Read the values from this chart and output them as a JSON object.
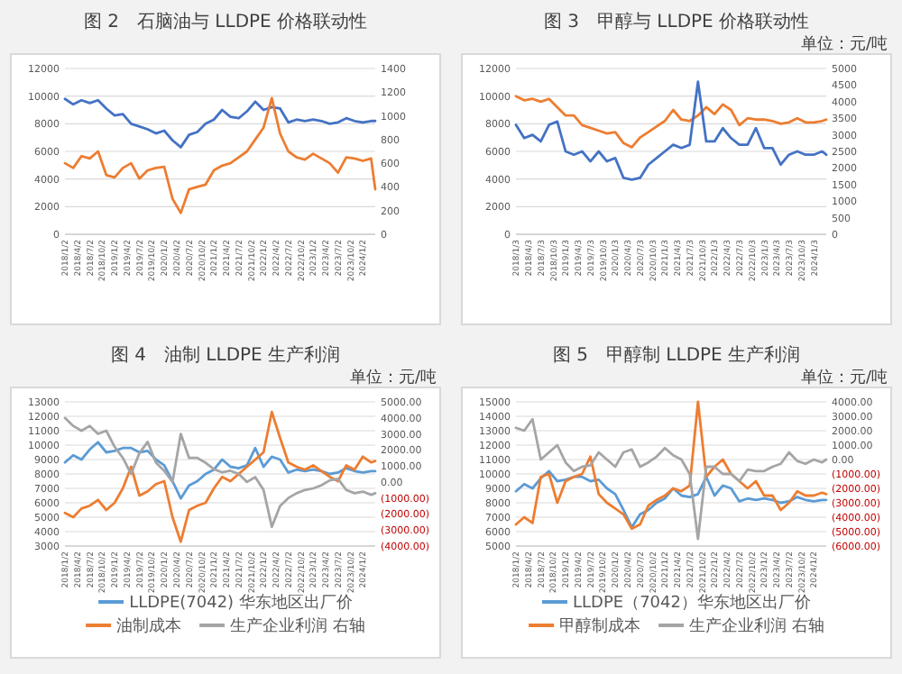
{
  "chart_data": [
    {
      "type": "line",
      "title": "图 2　石脑油与 LLDPE 价格联动性",
      "grid": "y",
      "xlim": [
        "2018-01",
        "2024-04"
      ],
      "x": [
        "2018-01",
        "2018-03",
        "2018-05",
        "2018-07",
        "2018-09",
        "2018-11",
        "2019-01",
        "2019-03",
        "2019-05",
        "2019-07",
        "2019-09",
        "2019-11",
        "2020-01",
        "2020-03",
        "2020-05",
        "2020-07",
        "2020-09",
        "2020-11",
        "2021-01",
        "2021-03",
        "2021-05",
        "2021-07",
        "2021-09",
        "2021-11",
        "2022-01",
        "2022-03",
        "2022-05",
        "2022-07",
        "2022-09",
        "2022-11",
        "2023-01",
        "2023-03",
        "2023-05",
        "2023-07",
        "2023-09",
        "2023-11",
        "2024-01",
        "2024-03",
        "2024-04"
      ],
      "xticks": [
        {
          "value": "2018-01-02",
          "label": "2018/1/2"
        },
        {
          "value": "2018-04-02",
          "label": "2018/4/2"
        },
        {
          "value": "2018-07-02",
          "label": "2018/7/2"
        },
        {
          "value": "2018-10-02",
          "label": "2018/10/2"
        },
        {
          "value": "2019-01-02",
          "label": "2019/1/2"
        },
        {
          "value": "2019-04-02",
          "label": "2019/4/2"
        },
        {
          "value": "2019-07-02",
          "label": "2019/7/2"
        },
        {
          "value": "2019-10-02",
          "label": "2019/10/2"
        },
        {
          "value": "2020-01-02",
          "label": "2020/1/2"
        },
        {
          "value": "2020-04-02",
          "label": "2020/4/2"
        },
        {
          "value": "2020-07-02",
          "label": "2020/7/2"
        },
        {
          "value": "2020-10-02",
          "label": "2020/10/2"
        },
        {
          "value": "2021-01-02",
          "label": "2021/1/2"
        },
        {
          "value": "2021-04-02",
          "label": "2021/4/2"
        },
        {
          "value": "2021-07-02",
          "label": "2021/7/2"
        },
        {
          "value": "2021-10-02",
          "label": "2021/10/2"
        },
        {
          "value": "2022-01-02",
          "label": "2022/1/2"
        },
        {
          "value": "2022-04-02",
          "label": "2022/4/2"
        },
        {
          "value": "2022-07-02",
          "label": "2022/7/2"
        },
        {
          "value": "2022-10-02",
          "label": "2022/10/2"
        },
        {
          "value": "2023-01-02",
          "label": "2023/1/2"
        },
        {
          "value": "2023-04-02",
          "label": "2023/4/2"
        },
        {
          "value": "2023-07-02",
          "label": "2023/7/2"
        },
        {
          "value": "2023-10-02",
          "label": "2023/10/2"
        },
        {
          "value": "2024-01-02",
          "label": "2024/1/2"
        }
      ],
      "ylim": [
        0,
        12000
      ],
      "yticks": [
        0,
        2000,
        4000,
        6000,
        8000,
        10000,
        12000
      ],
      "y2lim": [
        0,
        1400
      ],
      "y2ticks": [
        0,
        200,
        400,
        600,
        800,
        1000,
        1200,
        1400
      ],
      "series": [
        {
          "color": "#4472c4",
          "values": [
            9800,
            9400,
            9700,
            9500,
            9700,
            9100,
            8600,
            8700,
            8000,
            7800,
            7600,
            7300,
            7500,
            6800,
            6300,
            7200,
            7400,
            8000,
            8300,
            9000,
            8500,
            8400,
            8900,
            9600,
            9000,
            9200,
            9100,
            8100,
            8300,
            8200,
            8300,
            8200,
            8000,
            8100,
            8400,
            8200,
            8100,
            8200,
            8200
          ]
        },
        {
          "color": "#ed7d31",
          "axis": "y2",
          "values": [
            600,
            560,
            660,
            640,
            700,
            500,
            480,
            560,
            600,
            470,
            540,
            560,
            570,
            300,
            180,
            380,
            400,
            420,
            540,
            580,
            600,
            650,
            700,
            800,
            900,
            1150,
            850,
            700,
            650,
            630,
            680,
            640,
            600,
            520,
            650,
            640,
            620,
            640,
            380
          ]
        }
      ]
    },
    {
      "type": "line",
      "title": "图 3　甲醇与 LLDPE 价格联动性",
      "subtitle": "单位：元/吨",
      "grid": "y",
      "xlim": [
        "2018-01",
        "2024-04"
      ],
      "x": [
        "2018-01",
        "2018-03",
        "2018-05",
        "2018-07",
        "2018-09",
        "2018-11",
        "2019-01",
        "2019-03",
        "2019-05",
        "2019-07",
        "2019-09",
        "2019-11",
        "2020-01",
        "2020-03",
        "2020-05",
        "2020-07",
        "2020-09",
        "2020-11",
        "2021-01",
        "2021-03",
        "2021-05",
        "2021-07",
        "2021-09",
        "2021-11",
        "2022-01",
        "2022-03",
        "2022-05",
        "2022-07",
        "2022-09",
        "2022-11",
        "2023-01",
        "2023-03",
        "2023-05",
        "2023-07",
        "2023-09",
        "2023-11",
        "2024-01",
        "2024-03",
        "2024-04"
      ],
      "xticks": [
        {
          "value": "2018-01-03",
          "label": "2018/1/3"
        },
        {
          "value": "2018-04-03",
          "label": "2018/4/3"
        },
        {
          "value": "2018-07-03",
          "label": "2018/7/3"
        },
        {
          "value": "2018-10-03",
          "label": "2018/10/3"
        },
        {
          "value": "2019-01-03",
          "label": "2019/1/3"
        },
        {
          "value": "2019-04-03",
          "label": "2019/4/3"
        },
        {
          "value": "2019-07-03",
          "label": "2019/7/3"
        },
        {
          "value": "2019-10-03",
          "label": "2019/10/3"
        },
        {
          "value": "2020-01-03",
          "label": "2020/1/3"
        },
        {
          "value": "2020-04-03",
          "label": "2020/4/3"
        },
        {
          "value": "2020-07-03",
          "label": "2020/7/3"
        },
        {
          "value": "2020-10-03",
          "label": "2020/10/3"
        },
        {
          "value": "2021-01-03",
          "label": "2021/1/3"
        },
        {
          "value": "2021-04-03",
          "label": "2021/4/3"
        },
        {
          "value": "2021-07-03",
          "label": "2021/7/3"
        },
        {
          "value": "2021-10-03",
          "label": "2021/10/3"
        },
        {
          "value": "2022-01-03",
          "label": "2022/1/3"
        },
        {
          "value": "2022-04-03",
          "label": "2022/4/3"
        },
        {
          "value": "2022-07-03",
          "label": "2022/7/3"
        },
        {
          "value": "2022-10-03",
          "label": "2022/10/3"
        },
        {
          "value": "2023-01-03",
          "label": "2023/1/3"
        },
        {
          "value": "2023-04-03",
          "label": "2023/4/3"
        },
        {
          "value": "2023-07-03",
          "label": "2023/7/3"
        },
        {
          "value": "2023-10-03",
          "label": "2023/10/3"
        },
        {
          "value": "2024-01-03",
          "label": "2024/1/3"
        }
      ],
      "ylim": [
        0,
        12000
      ],
      "yticks": [
        0,
        2000,
        4000,
        6000,
        8000,
        10000,
        12000
      ],
      "y2lim": [
        0,
        5000
      ],
      "y2ticks": [
        0,
        500,
        1000,
        1500,
        2000,
        2500,
        3000,
        3500,
        4000,
        4500,
        5000
      ],
      "series": [
        {
          "color": "#ed7d31",
          "values": [
            10000,
            9700,
            9800,
            9600,
            9800,
            9200,
            8600,
            8600,
            7900,
            7700,
            7500,
            7300,
            7400,
            6600,
            6300,
            7000,
            7400,
            7800,
            8200,
            9000,
            8300,
            8200,
            8600,
            9200,
            8700,
            9400,
            9000,
            7900,
            8400,
            8300,
            8300,
            8200,
            8000,
            8100,
            8400,
            8100,
            8100,
            8200,
            8300
          ]
        },
        {
          "color": "#4472c4",
          "axis": "y2",
          "values": [
            3300,
            2900,
            3000,
            2800,
            3300,
            3400,
            2500,
            2400,
            2500,
            2200,
            2500,
            2200,
            2300,
            1700,
            1650,
            1700,
            2100,
            2300,
            2500,
            2700,
            2600,
            2700,
            4600,
            2800,
            2800,
            3200,
            2900,
            2700,
            2700,
            3200,
            2600,
            2600,
            2100,
            2400,
            2500,
            2400,
            2400,
            2500,
            2400
          ]
        }
      ]
    },
    {
      "type": "line",
      "title": "图 4　油制 LLDPE 生产利润",
      "subtitle": "单位：元/吨",
      "grid": "y",
      "legend": "bottom",
      "xlim": [
        "2018-01",
        "2024-04"
      ],
      "x": [
        "2018-01",
        "2018-03",
        "2018-05",
        "2018-07",
        "2018-09",
        "2018-11",
        "2019-01",
        "2019-03",
        "2019-05",
        "2019-07",
        "2019-09",
        "2019-11",
        "2020-01",
        "2020-03",
        "2020-05",
        "2020-07",
        "2020-09",
        "2020-11",
        "2021-01",
        "2021-03",
        "2021-05",
        "2021-07",
        "2021-09",
        "2021-11",
        "2022-01",
        "2022-03",
        "2022-05",
        "2022-07",
        "2022-09",
        "2022-11",
        "2023-01",
        "2023-03",
        "2023-05",
        "2023-07",
        "2023-09",
        "2023-11",
        "2024-01",
        "2024-03",
        "2024-04"
      ],
      "xticks": [
        {
          "value": "2018-01-02",
          "label": "2018/1/2"
        },
        {
          "value": "2018-04-02",
          "label": "2018/4/2"
        },
        {
          "value": "2018-07-02",
          "label": "2018/7/2"
        },
        {
          "value": "2018-10-02",
          "label": "2018/10/2"
        },
        {
          "value": "2019-01-02",
          "label": "2019/1/2"
        },
        {
          "value": "2019-04-02",
          "label": "2019/4/2"
        },
        {
          "value": "2019-07-02",
          "label": "2019/7/2"
        },
        {
          "value": "2019-10-02",
          "label": "2019/10/2"
        },
        {
          "value": "2020-01-02",
          "label": "2020/1/2"
        },
        {
          "value": "2020-04-02",
          "label": "2020/4/2"
        },
        {
          "value": "2020-07-02",
          "label": "2020/7/2"
        },
        {
          "value": "2020-10-02",
          "label": "2020/10/2"
        },
        {
          "value": "2021-01-02",
          "label": "2021/1/2"
        },
        {
          "value": "2021-04-02",
          "label": "2021/4/2"
        },
        {
          "value": "2021-07-02",
          "label": "2021/7/2"
        },
        {
          "value": "2021-10-02",
          "label": "2021/10/2"
        },
        {
          "value": "2022-01-02",
          "label": "2022/1/2"
        },
        {
          "value": "2022-04-02",
          "label": "2022/4/2"
        },
        {
          "value": "2022-07-02",
          "label": "2022/7/2"
        },
        {
          "value": "2022-10-02",
          "label": "2022/10/2"
        },
        {
          "value": "2023-01-02",
          "label": "2023/1/2"
        },
        {
          "value": "2023-04-02",
          "label": "2023/4/2"
        },
        {
          "value": "2023-07-02",
          "label": "2023/7/2"
        },
        {
          "value": "2023-10-02",
          "label": "2023/10/2"
        },
        {
          "value": "2024-01-02",
          "label": "2024/1/2"
        }
      ],
      "ylim": [
        3000,
        13000
      ],
      "yticks": [
        3000,
        4000,
        5000,
        6000,
        7000,
        8000,
        9000,
        10000,
        11000,
        12000,
        13000
      ],
      "y2lim": [
        -4000,
        5000
      ],
      "y2ticks": [
        {
          "value": -4000,
          "label": "(4000.00)"
        },
        {
          "value": -3000,
          "label": "(3000.00)"
        },
        {
          "value": -2000,
          "label": "(2000.00)"
        },
        {
          "value": -1000,
          "label": "(1000.00)"
        },
        {
          "value": 0,
          "label": "0.00"
        },
        {
          "value": 1000,
          "label": "1000.00"
        },
        {
          "value": 2000,
          "label": "2000.00"
        },
        {
          "value": 3000,
          "label": "3000.00"
        },
        {
          "value": 4000,
          "label": "4000.00"
        },
        {
          "value": 5000,
          "label": "5000.00"
        }
      ],
      "series": [
        {
          "name": "LLDPE(7042) 华东地区出厂价",
          "color": "#5b9bd5",
          "values": [
            8800,
            9300,
            9000,
            9700,
            10200,
            9500,
            9600,
            9800,
            9800,
            9500,
            9600,
            9000,
            8600,
            7500,
            6300,
            7200,
            7500,
            8000,
            8300,
            9000,
            8500,
            8400,
            8600,
            9800,
            8500,
            9200,
            9000,
            8100,
            8300,
            8200,
            8300,
            8200,
            8000,
            8100,
            8400,
            8200,
            8100,
            8200,
            8200
          ]
        },
        {
          "name": "油制成本",
          "color": "#ed7d31",
          "values": [
            5300,
            5000,
            5600,
            5800,
            6200,
            5500,
            6000,
            7000,
            8500,
            6500,
            6800,
            7300,
            7500,
            5000,
            3300,
            5500,
            5800,
            6000,
            7000,
            7800,
            7500,
            8000,
            8500,
            9000,
            9500,
            12300,
            10500,
            8800,
            8500,
            8300,
            8600,
            8200,
            7800,
            7500,
            8600,
            8300,
            9200,
            8800,
            8900
          ]
        },
        {
          "name": "生产企业利润 右轴",
          "color": "#a5a5a5",
          "axis": "y2",
          "values": [
            4000,
            3500,
            3200,
            3500,
            3000,
            3200,
            2200,
            1500,
            500,
            1800,
            2500,
            1200,
            700,
            0,
            3000,
            1500,
            1500,
            1200,
            800,
            600,
            700,
            500,
            0,
            300,
            -500,
            -2800,
            -1500,
            -1000,
            -700,
            -500,
            -400,
            -200,
            100,
            200,
            -500,
            -700,
            -600,
            -800,
            -700
          ]
        }
      ]
    },
    {
      "type": "line",
      "title": "图 5　甲醇制 LLDPE 生产利润",
      "subtitle": "单位：元/吨",
      "grid": "y",
      "legend": "bottom",
      "xlim": [
        "2018-01",
        "2024-04"
      ],
      "x": [
        "2018-01",
        "2018-03",
        "2018-05",
        "2018-07",
        "2018-09",
        "2018-11",
        "2019-01",
        "2019-03",
        "2019-05",
        "2019-07",
        "2019-09",
        "2019-11",
        "2020-01",
        "2020-03",
        "2020-05",
        "2020-07",
        "2020-09",
        "2020-11",
        "2021-01",
        "2021-03",
        "2021-05",
        "2021-07",
        "2021-09",
        "2021-11",
        "2022-01",
        "2022-03",
        "2022-05",
        "2022-07",
        "2022-09",
        "2022-11",
        "2023-01",
        "2023-03",
        "2023-05",
        "2023-07",
        "2023-09",
        "2023-11",
        "2024-01",
        "2024-03",
        "2024-04"
      ],
      "xticks": [
        {
          "value": "2018-01-02",
          "label": "2018/1/2"
        },
        {
          "value": "2018-04-02",
          "label": "2018/4/2"
        },
        {
          "value": "2018-07-02",
          "label": "2018/7/2"
        },
        {
          "value": "2018-10-02",
          "label": "2018/10/2"
        },
        {
          "value": "2019-01-02",
          "label": "2019/1/2"
        },
        {
          "value": "2019-04-02",
          "label": "2019/4/2"
        },
        {
          "value": "2019-07-02",
          "label": "2019/7/2"
        },
        {
          "value": "2019-10-02",
          "label": "2019/10/2"
        },
        {
          "value": "2020-01-02",
          "label": "2020/1/2"
        },
        {
          "value": "2020-04-02",
          "label": "2020/4/2"
        },
        {
          "value": "2020-07-02",
          "label": "2020/7/2"
        },
        {
          "value": "2020-10-02",
          "label": "2020/10/2"
        },
        {
          "value": "2021-01-02",
          "label": "2021/1/2"
        },
        {
          "value": "2021-04-02",
          "label": "2021/4/2"
        },
        {
          "value": "2021-07-02",
          "label": "2021/7/2"
        },
        {
          "value": "2021-10-02",
          "label": "2021/10/2"
        },
        {
          "value": "2022-01-02",
          "label": "2022/1/2"
        },
        {
          "value": "2022-04-02",
          "label": "2022/4/2"
        },
        {
          "value": "2022-07-02",
          "label": "2022/7/2"
        },
        {
          "value": "2022-10-02",
          "label": "2022/10/2"
        },
        {
          "value": "2023-01-02",
          "label": "2023/1/2"
        },
        {
          "value": "2023-04-02",
          "label": "2023/4/2"
        },
        {
          "value": "2023-07-02",
          "label": "2023/7/2"
        },
        {
          "value": "2023-10-02",
          "label": "2023/10/2"
        },
        {
          "value": "2024-01-02",
          "label": "2024/1/2"
        }
      ],
      "ylim": [
        5000,
        15000
      ],
      "yticks": [
        5000,
        6000,
        7000,
        8000,
        9000,
        10000,
        11000,
        12000,
        13000,
        14000,
        15000
      ],
      "y2lim": [
        -6000,
        4000
      ],
      "y2ticks": [
        {
          "value": -6000,
          "label": "(6000.00)"
        },
        {
          "value": -5000,
          "label": "(5000.00)"
        },
        {
          "value": -4000,
          "label": "(4000.00)"
        },
        {
          "value": -3000,
          "label": "(3000.00)"
        },
        {
          "value": -2000,
          "label": "(2000.00)"
        },
        {
          "value": -1000,
          "label": "(1000.00)"
        },
        {
          "value": 0,
          "label": "0.00"
        },
        {
          "value": 1000,
          "label": "1000.00"
        },
        {
          "value": 2000,
          "label": "2000.00"
        },
        {
          "value": 3000,
          "label": "3000.00"
        },
        {
          "value": 4000,
          "label": "4000.00"
        }
      ],
      "series": [
        {
          "name": "LLDPE（7042）华东地区出厂价",
          "color": "#5b9bd5",
          "values": [
            8800,
            9300,
            9000,
            9700,
            10200,
            9500,
            9600,
            9800,
            9800,
            9500,
            9600,
            9000,
            8600,
            7500,
            6300,
            7200,
            7500,
            8000,
            8300,
            9000,
            8500,
            8400,
            8600,
            9800,
            8500,
            9200,
            9000,
            8100,
            8300,
            8200,
            8300,
            8200,
            8000,
            8100,
            8400,
            8200,
            8100,
            8200,
            8200
          ]
        },
        {
          "name": "甲醇制成本",
          "color": "#ed7d31",
          "values": [
            6500,
            7000,
            6600,
            9800,
            10000,
            8000,
            9500,
            9800,
            10000,
            11200,
            8600,
            8000,
            7600,
            7200,
            6200,
            6500,
            7800,
            8200,
            8500,
            9000,
            8800,
            9200,
            15000,
            9800,
            10500,
            11000,
            10000,
            9500,
            9000,
            9500,
            8500,
            8500,
            7500,
            8000,
            8800,
            8500,
            8500,
            8700,
            8600
          ]
        },
        {
          "name": "生产企业利润 右轴",
          "color": "#a5a5a5",
          "axis": "y2",
          "values": [
            2200,
            2000,
            2800,
            0,
            500,
            1000,
            -200,
            -800,
            -500,
            -400,
            500,
            0,
            -500,
            500,
            700,
            -500,
            -200,
            200,
            800,
            300,
            0,
            -1000,
            -5500,
            -500,
            -500,
            -1000,
            -1000,
            -1500,
            -700,
            -800,
            -800,
            -500,
            -300,
            500,
            -100,
            -300,
            0,
            -200,
            0
          ]
        }
      ]
    }
  ]
}
